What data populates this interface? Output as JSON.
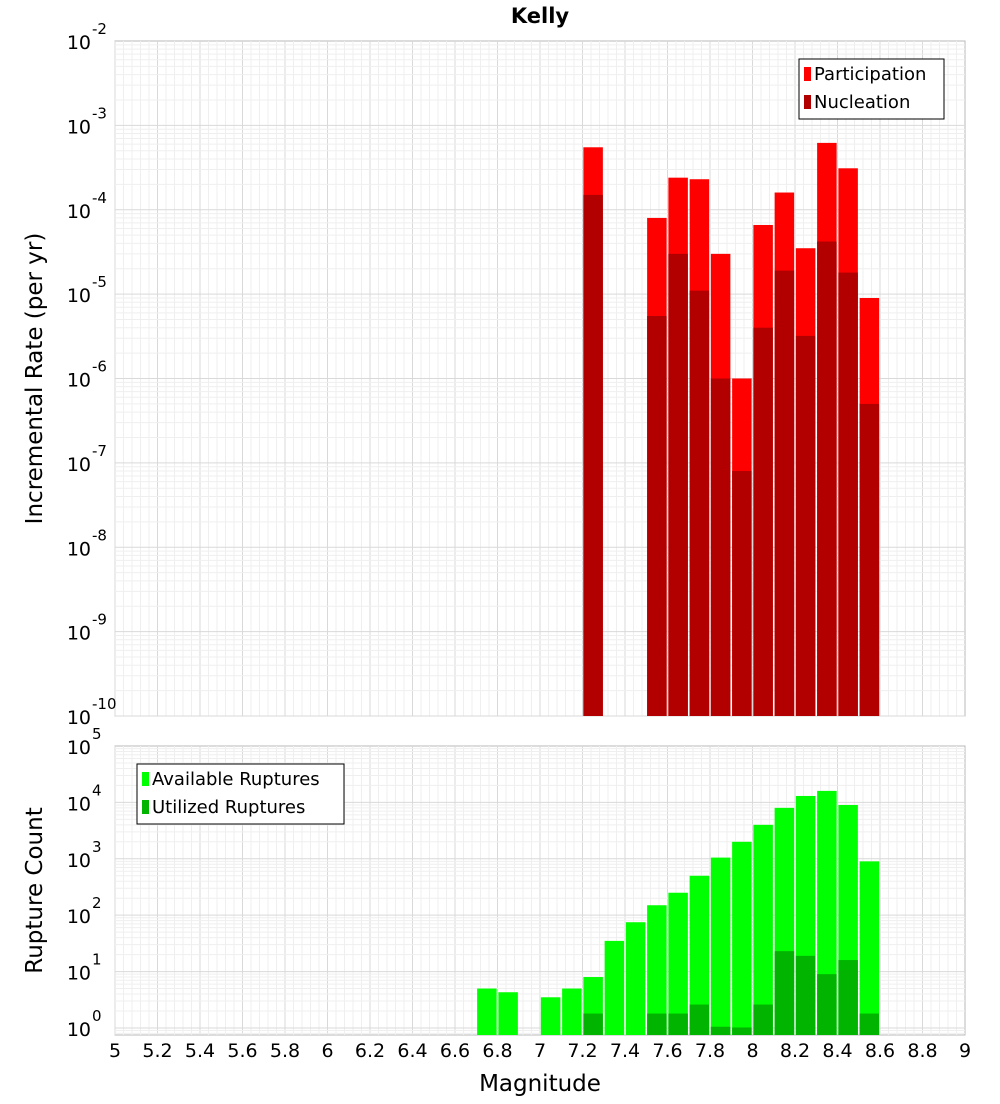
{
  "chart_data": [
    {
      "type": "bar",
      "title": "Kelly",
      "xlabel": "",
      "ylabel": "Incremental Rate (per yr)",
      "yscale": "log",
      "ylim": [
        1e-10,
        0.01
      ],
      "xlim": [
        5,
        9
      ],
      "grid": true,
      "legend_position": "top-right",
      "bar_mode": "overlay",
      "x": [
        7.25,
        7.55,
        7.65,
        7.75,
        7.85,
        7.95,
        8.05,
        8.15,
        8.25,
        8.35,
        8.45,
        8.55
      ],
      "series": [
        {
          "name": "Participation",
          "color": "#ff0000",
          "values": [
            0.00055,
            8e-05,
            0.00024,
            0.00023,
            3e-05,
            1e-06,
            6.6e-05,
            0.00016,
            3.5e-05,
            0.00062,
            0.00031,
            9e-06
          ]
        },
        {
          "name": "Nucleation",
          "color": "#b20000",
          "values": [
            0.00015,
            5.5e-06,
            3e-05,
            1.1e-05,
            1e-06,
            8e-08,
            4e-06,
            1.9e-05,
            3.2e-06,
            4.2e-05,
            1.8e-05,
            5e-07
          ]
        }
      ]
    },
    {
      "type": "bar",
      "title": "",
      "xlabel": "Magnitude",
      "ylabel": "Rupture Count",
      "yscale": "log",
      "ylim": [
        0.75,
        100000
      ],
      "xlim": [
        5,
        9
      ],
      "grid": true,
      "legend_position": "top-left",
      "bar_mode": "overlay",
      "x": [
        6.75,
        6.85,
        7.05,
        7.15,
        7.25,
        7.35,
        7.45,
        7.55,
        7.65,
        7.75,
        7.85,
        7.95,
        8.05,
        8.15,
        8.25,
        8.35,
        8.45,
        8.55
      ],
      "x_ticks": [
        "5",
        "5.2",
        "5.4",
        "5.6",
        "5.8",
        "6",
        "6.2",
        "6.4",
        "6.6",
        "6.8",
        "7",
        "7.2",
        "7.4",
        "7.6",
        "7.8",
        "8",
        "8.2",
        "8.4",
        "8.6",
        "8.8",
        "9"
      ],
      "series": [
        {
          "name": "Available Ruptures",
          "color": "#00ff00",
          "values": [
            5,
            4.3,
            3.5,
            5,
            8,
            35,
            75,
            150,
            250,
            500,
            1050,
            2000,
            4000,
            8000,
            13000,
            16000,
            9000,
            900
          ]
        },
        {
          "name": "Utilized Ruptures",
          "color": "#00b400",
          "values": [
            0,
            0,
            0,
            0,
            1.8,
            0,
            0,
            1.8,
            1.8,
            2.6,
            1.05,
            1.02,
            2.6,
            23,
            19,
            9,
            16,
            1.8
          ]
        }
      ]
    }
  ]
}
